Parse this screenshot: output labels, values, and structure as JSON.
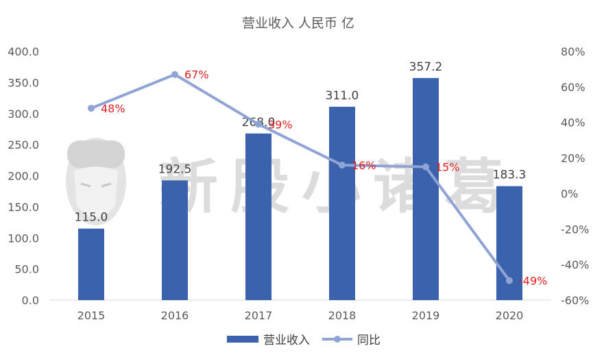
{
  "chart_data": {
    "type": "bar",
    "title": "营业收入  人民币 亿",
    "categories": [
      "2015",
      "2016",
      "2017",
      "2018",
      "2019",
      "2020"
    ],
    "series": [
      {
        "name": "营业收入",
        "type": "bar",
        "axis": "left",
        "values": [
          115.0,
          192.5,
          268.0,
          311.0,
          357.2,
          183.3
        ],
        "labels": [
          "115.0",
          "192.5",
          "268.0",
          "311.0",
          "357.2",
          "183.3"
        ],
        "color": "#3a62ad"
      },
      {
        "name": "同比",
        "type": "line",
        "axis": "right",
        "values": [
          48,
          67,
          39,
          16,
          15,
          -49
        ],
        "labels": [
          "48%",
          "67%",
          "39%",
          "16%",
          "15%",
          "-49%"
        ],
        "color": "#8fa3d4",
        "label_color": "#e02020"
      }
    ],
    "ylim_left": [
      0,
      400
    ],
    "yticks_left": [
      "0.0",
      "50.0",
      "100.0",
      "150.0",
      "200.0",
      "250.0",
      "300.0",
      "350.0",
      "400.0"
    ],
    "ylim_right": [
      -60,
      80
    ],
    "yticks_right": [
      "-60%",
      "-40%",
      "-20%",
      "0%",
      "20%",
      "40%",
      "60%",
      "80%"
    ],
    "grid": false,
    "legend_position": "bottom"
  },
  "watermark": "新股小诸葛"
}
